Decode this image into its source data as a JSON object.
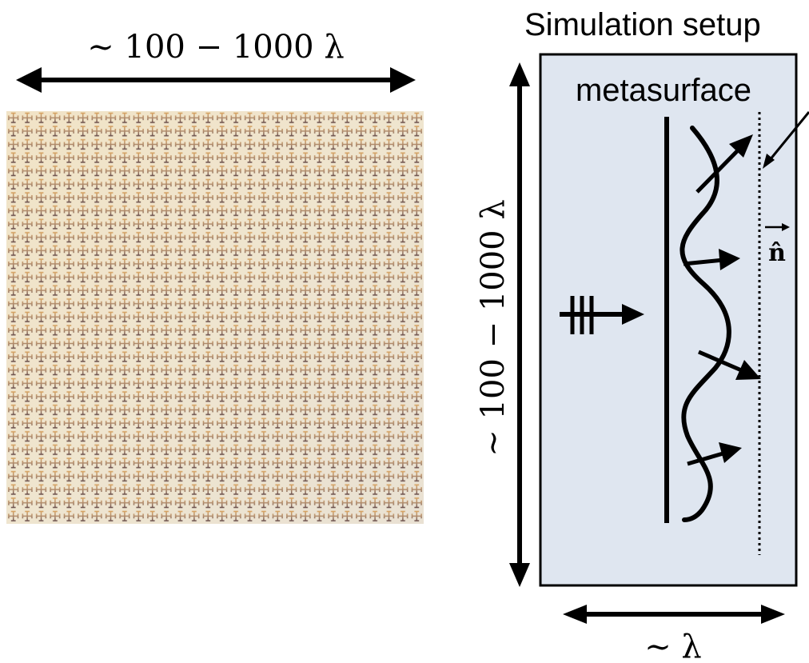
{
  "left_panel": {
    "width_label": "∼ 100 − 1000 λ",
    "sample_image": "metasurface-sample-photo"
  },
  "right_panel": {
    "title": "Simulation setup",
    "box_label": "metasurface",
    "height_label": "∼ 100 − 1000 λ",
    "width_label": "∼ λ",
    "normal_label": "n̂",
    "colors": {
      "box_fill": "#dfe6f0",
      "stroke": "#000000"
    }
  }
}
